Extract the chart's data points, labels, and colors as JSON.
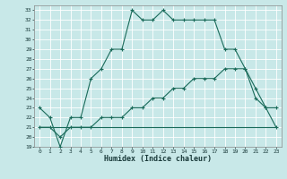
{
  "xlabel": "Humidex (Indice chaleur)",
  "background_color": "#c8e8e8",
  "grid_color": "#ffffff",
  "line_color": "#1a6b5a",
  "xlim": [
    -0.5,
    23.5
  ],
  "ylim": [
    19,
    33.5
  ],
  "xticks": [
    0,
    1,
    2,
    3,
    4,
    5,
    6,
    7,
    8,
    9,
    10,
    11,
    12,
    13,
    14,
    15,
    16,
    17,
    18,
    19,
    20,
    21,
    22,
    23
  ],
  "yticks": [
    19,
    20,
    21,
    22,
    23,
    24,
    25,
    26,
    27,
    28,
    29,
    30,
    31,
    32,
    33
  ],
  "line1_x": [
    0,
    1,
    2,
    3,
    4,
    5,
    6,
    7,
    8,
    9,
    10,
    11,
    12,
    13,
    14,
    15,
    16,
    17,
    18,
    19,
    20,
    21,
    22,
    23
  ],
  "line1_y": [
    23,
    22,
    19,
    22,
    22,
    26,
    27,
    29,
    29,
    33,
    32,
    32,
    33,
    32,
    32,
    32,
    32,
    32,
    29,
    29,
    27,
    24,
    23,
    23
  ],
  "line2_x": [
    0,
    1,
    2,
    3,
    4,
    5,
    6,
    7,
    8,
    9,
    10,
    11,
    12,
    13,
    14,
    15,
    16,
    17,
    18,
    19,
    20,
    21,
    22,
    23
  ],
  "line2_y": [
    21,
    21,
    20,
    21,
    21,
    21,
    22,
    22,
    22,
    23,
    23,
    24,
    24,
    25,
    25,
    26,
    26,
    26,
    27,
    27,
    27,
    25,
    23,
    21
  ],
  "line3_x": [
    0,
    1,
    2,
    3,
    4,
    5,
    6,
    7,
    8,
    9,
    10,
    11,
    12,
    13,
    14,
    15,
    16,
    17,
    18,
    19,
    20,
    21,
    22,
    23
  ],
  "line3_y": [
    21,
    21,
    21,
    21,
    21,
    21,
    21,
    21,
    21,
    21,
    21,
    21,
    21,
    21,
    21,
    21,
    21,
    21,
    21,
    21,
    21,
    21,
    21,
    21
  ]
}
